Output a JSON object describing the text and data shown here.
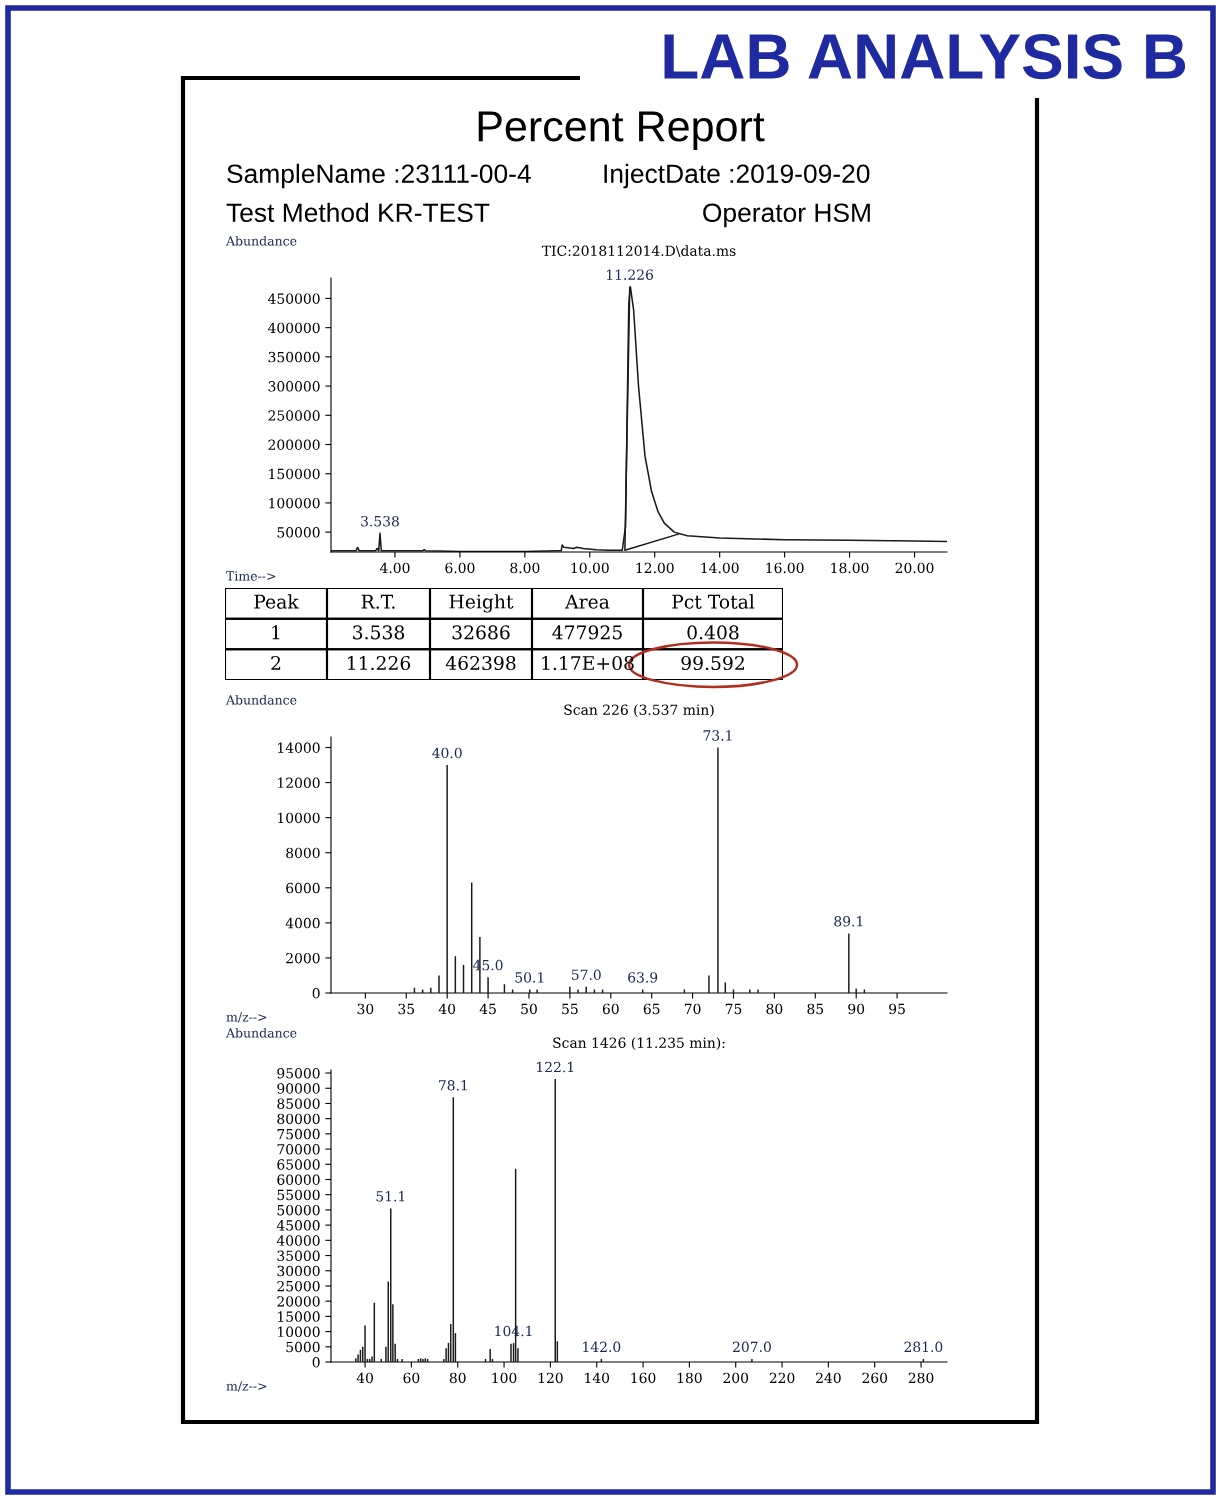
{
  "chart_data": [
    {
      "type": "other",
      "title": "Percent Report",
      "annotations": [
        "LAB ANALYSIS B",
        "SampleName :23111-00-4",
        "InjectDate :2019-09-20",
        "Test Method KR-TEST",
        "Operator HSM"
      ]
    },
    {
      "type": "line",
      "title": "TIC:2018112014.D\\data.ms",
      "ylabel": "Abundance",
      "xlabel": "Time-->",
      "xlim": [
        2.03,
        21.0
      ],
      "ylim": [
        16000,
        485000
      ],
      "xticks": [
        {
          "value": 4,
          "label": "4.00"
        },
        {
          "value": 6,
          "label": "6.00"
        },
        {
          "value": 8,
          "label": "8.00"
        },
        {
          "value": 10,
          "label": "10.00"
        },
        {
          "value": 12,
          "label": "12.00"
        },
        {
          "value": 14,
          "label": "14.00"
        },
        {
          "value": 16,
          "label": "16.00"
        },
        {
          "value": 18,
          "label": "18.00"
        },
        {
          "value": 20,
          "label": "20.00"
        }
      ],
      "yticks": [
        50000,
        100000,
        150000,
        200000,
        250000,
        300000,
        350000,
        400000,
        450000
      ],
      "series": [
        {
          "color": "#1a1a1a",
          "x": [
            2.03,
            2.8,
            2.85,
            2.9,
            3.4,
            3.45,
            3.5,
            3.538,
            3.58,
            4.85,
            4.9,
            4.95,
            6.0,
            8.0,
            9.0,
            9.12,
            9.15,
            9.2,
            9.5,
            9.6,
            9.8,
            10.2,
            10.6,
            11.0,
            11.1,
            11.2,
            11.25,
            11.35,
            11.5,
            11.7,
            11.9,
            12.1,
            12.3,
            12.6,
            13.0,
            14.0,
            16.0,
            18.0,
            20.0,
            21.0
          ],
          "values": [
            18000,
            18000,
            24000,
            18000,
            18000,
            22000,
            18000,
            48000,
            18000,
            18000,
            20000,
            18000,
            17000,
            17000,
            18000,
            18000,
            28000,
            24000,
            22000,
            24000,
            22000,
            20000,
            19000,
            19000,
            60000,
            440000,
            470000,
            430000,
            300000,
            180000,
            120000,
            85000,
            65000,
            50000,
            44000,
            40000,
            37000,
            36000,
            35000,
            34000
          ]
        },
        {
          "color": "#1a1a1a",
          "x": [
            11.23,
            11.08,
            12.75
          ],
          "values": [
            470000,
            19000,
            47000
          ]
        }
      ],
      "annotations": [
        {
          "text": "3.538",
          "x": 3.538,
          "y": 48000
        },
        {
          "text": "11.226",
          "x": 11.226,
          "y": 470000
        }
      ]
    },
    {
      "type": "other",
      "categories": [
        "Peak",
        "R.T.",
        "Height",
        "Area",
        "Pct Total"
      ],
      "cell_labels": [
        [
          "1",
          "3.538",
          "32686",
          "477925",
          "0.408"
        ],
        [
          "2",
          "11.226",
          "462398",
          "1.17E+08",
          "99.592"
        ]
      ]
    },
    {
      "type": "bar",
      "title": "Scan 226 (3.537 min)",
      "ylabel": "Abundance",
      "xlabel": "m/z-->",
      "xlim": [
        25.8,
        101.1
      ],
      "ylim": [
        0,
        14600
      ],
      "xticks": [
        30,
        35,
        40,
        45,
        50,
        55,
        60,
        65,
        70,
        75,
        80,
        85,
        90,
        95
      ],
      "yticks": [
        0,
        2000,
        4000,
        6000,
        8000,
        10000,
        12000,
        14000
      ],
      "color": "#1a1a1a",
      "x": [
        36,
        37,
        38,
        39,
        40.0,
        41,
        42,
        43,
        44,
        45.0,
        47,
        48,
        50.1,
        51,
        55,
        56,
        57.0,
        58,
        59,
        63.9,
        69,
        72,
        73.1,
        74,
        75,
        77,
        78,
        89.1,
        90,
        91
      ],
      "values": [
        300,
        200,
        300,
        1000,
        13000,
        2100,
        1600,
        6300,
        3200,
        900,
        500,
        200,
        200,
        200,
        350,
        200,
        350,
        200,
        200,
        200,
        200,
        1000,
        14000,
        600,
        200,
        200,
        200,
        3400,
        250,
        200
      ],
      "annotations": [
        {
          "text": "40.0",
          "x": 40.0,
          "y": 13000
        },
        {
          "text": "45.0",
          "x": 45.0,
          "y": 900
        },
        {
          "text": "50.1",
          "x": 50.1,
          "y": 200
        },
        {
          "text": "57.0",
          "x": 57.0,
          "y": 350
        },
        {
          "text": "63.9",
          "x": 63.9,
          "y": 200
        },
        {
          "text": "73.1",
          "x": 73.1,
          "y": 14000
        },
        {
          "text": "89.1",
          "x": 89.1,
          "y": 3400
        }
      ]
    },
    {
      "type": "bar",
      "title": "Scan 1426 (11.235 min):",
      "ylabel": "Abundance",
      "xlabel": "m/z-->",
      "xlim": [
        25.3,
        291.2
      ],
      "ylim": [
        0,
        96000
      ],
      "xticks": [
        40,
        60,
        80,
        100,
        120,
        140,
        160,
        180,
        200,
        220,
        240,
        260,
        280
      ],
      "yticks": [
        0,
        5000,
        10000,
        15000,
        20000,
        25000,
        30000,
        35000,
        40000,
        45000,
        50000,
        55000,
        60000,
        65000,
        70000,
        75000,
        80000,
        85000,
        90000,
        95000
      ],
      "color": "#1a1a1a",
      "x": [
        36,
        37,
        38,
        39,
        40,
        41,
        42,
        43,
        44,
        47,
        49,
        50,
        51.1,
        52,
        53,
        54,
        56,
        63,
        64,
        65,
        66,
        67,
        74,
        75,
        76,
        77,
        78.1,
        79,
        92,
        94,
        95,
        103,
        104.1,
        105,
        106,
        122.1,
        123,
        142.0,
        207.0,
        281.0
      ],
      "values": [
        1200,
        2500,
        4000,
        5000,
        12000,
        1000,
        1000,
        1800,
        19500,
        1000,
        5000,
        26500,
        50500,
        19000,
        6000,
        1000,
        1000,
        1000,
        1200,
        1000,
        1200,
        1000,
        1000,
        4500,
        6300,
        12500,
        87000,
        9500,
        1000,
        4300,
        1000,
        6000,
        6200,
        63500,
        4500,
        93000,
        6800,
        1000,
        1000,
        1000
      ],
      "annotations": [
        {
          "text": "51.1",
          "x": 51.1,
          "y": 50500
        },
        {
          "text": "78.1",
          "x": 78.1,
          "y": 87000
        },
        {
          "text": "104.1",
          "x": 104.1,
          "y": 6200
        },
        {
          "text": "122.1",
          "x": 122.1,
          "y": 93000
        },
        {
          "text": "142.0",
          "x": 142.0,
          "y": 1000
        },
        {
          "text": "207.0",
          "x": 207.0,
          "y": 1000
        },
        {
          "text": "281.0",
          "x": 281.0,
          "y": 1000
        }
      ]
    }
  ]
}
